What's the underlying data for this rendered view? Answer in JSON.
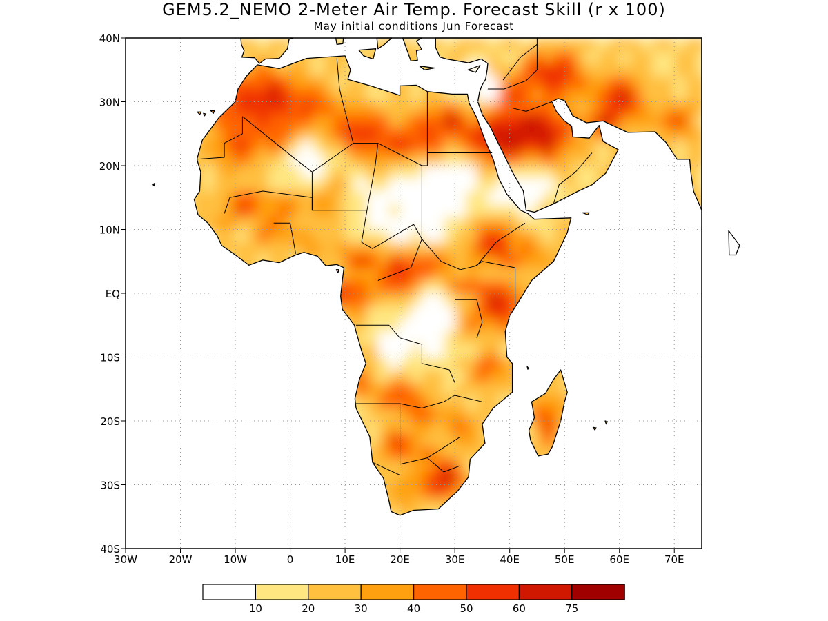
{
  "title": "GEM5.2_NEMO 2-Meter Air Temp. Forecast Skill (r x 100)",
  "subtitle": "May initial conditions  Jun Forecast",
  "map": {
    "lon_range": [
      -30,
      75
    ],
    "lat_range": [
      -40,
      40
    ],
    "lon_ticks": [
      "30W",
      "20W",
      "10W",
      "0",
      "10E",
      "20E",
      "30E",
      "40E",
      "50E",
      "60E",
      "70E"
    ],
    "lat_ticks": [
      "40N",
      "30N",
      "20N",
      "10N",
      "EQ",
      "10S",
      "20S",
      "30S",
      "40S"
    ],
    "grid": true,
    "grid_style": "dotted"
  },
  "legend": {
    "placement": "bottom-center",
    "colors": [
      "#ffffff",
      "#ffe680",
      "#ffc040",
      "#ffa010",
      "#ff6400",
      "#f03000",
      "#d01800",
      "#a00000"
    ],
    "labels": [
      "10",
      "20",
      "30",
      "40",
      "50",
      "60",
      "75"
    ]
  }
}
